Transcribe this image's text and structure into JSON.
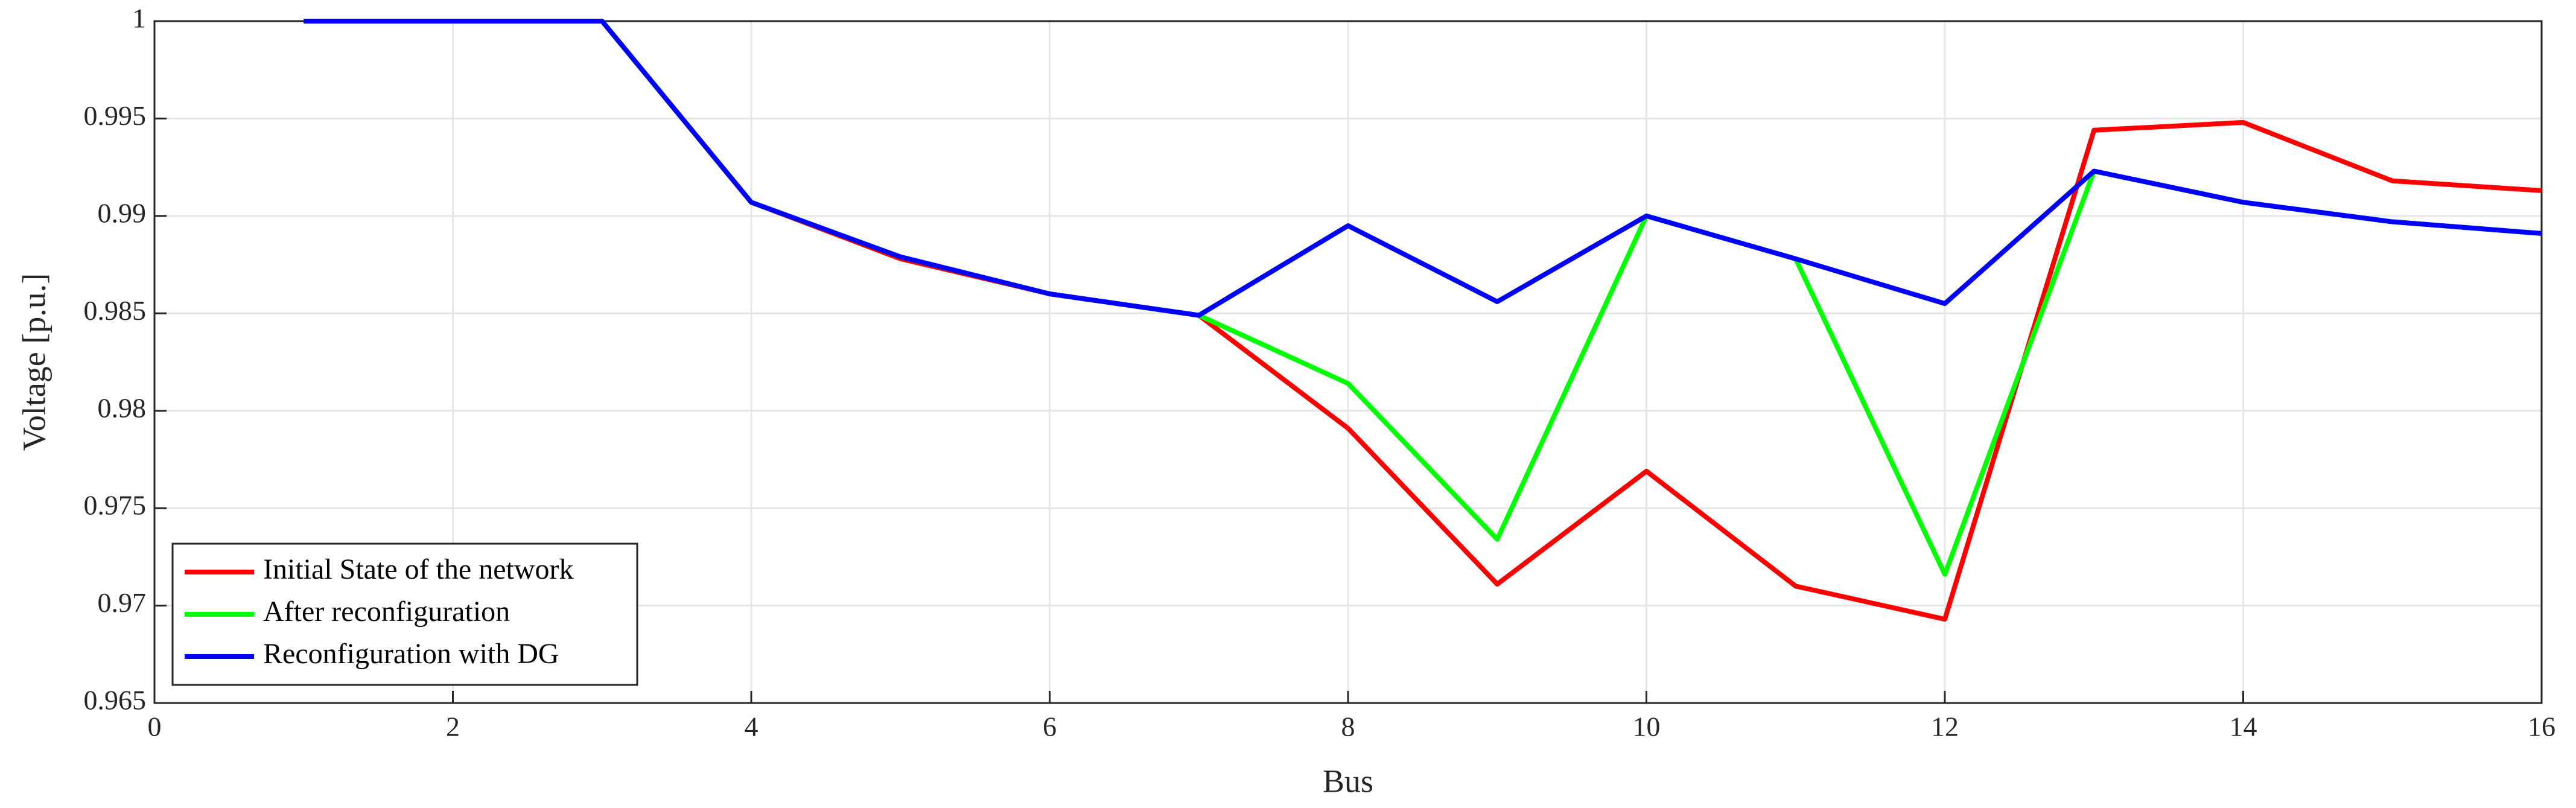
{
  "chart_data": {
    "type": "line",
    "x": [
      1,
      2,
      3,
      4,
      5,
      6,
      7,
      8,
      9,
      10,
      11,
      12,
      13,
      14,
      15,
      16
    ],
    "series": [
      {
        "name": "Initial State of the network",
        "color": "#ff0000",
        "values": [
          1,
          1,
          1,
          0.9907,
          0.9878,
          0.986,
          0.9849,
          0.9791,
          0.9711,
          0.9769,
          0.971,
          0.9693,
          0.9944,
          0.9948,
          0.9918,
          0.9913
        ]
      },
      {
        "name": "After reconfiguration",
        "color": "#00ff00",
        "values": [
          1,
          1,
          1,
          0.9907,
          0.9879,
          0.986,
          0.9849,
          0.9814,
          0.9734,
          0.99,
          0.9878,
          0.9716,
          0.9923,
          0.9907,
          0.9897,
          0.9891
        ]
      },
      {
        "name": "Reconfiguration with DG",
        "color": "#0000ff",
        "values": [
          1,
          1,
          1,
          0.9907,
          0.9879,
          0.986,
          0.9849,
          0.9895,
          0.9856,
          0.99,
          0.9878,
          0.9855,
          0.9923,
          0.9907,
          0.9897,
          0.9891
        ]
      }
    ],
    "xlabel": "Bus",
    "ylabel": "Voltage [p.u.]",
    "xlim": [
      0,
      16
    ],
    "xticks": [
      0,
      2,
      4,
      6,
      8,
      10,
      12,
      14,
      16
    ],
    "ylim": [
      0.965,
      1
    ],
    "yticks": [
      0.965,
      0.97,
      0.975,
      0.98,
      0.985,
      0.99,
      0.995,
      1
    ],
    "grid": true,
    "legend": "lower left"
  }
}
